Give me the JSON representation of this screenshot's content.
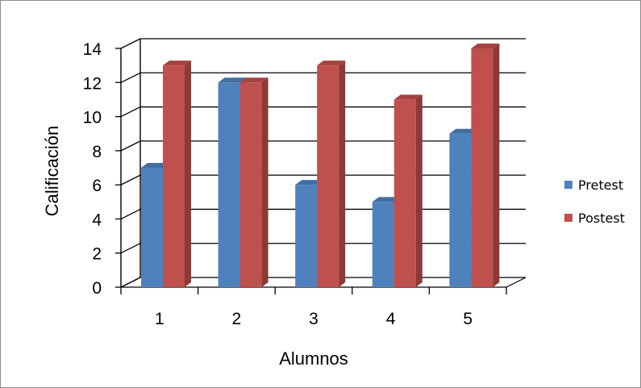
{
  "chart_data": {
    "type": "bar",
    "style": "3d-clustered-column",
    "categories": [
      "1",
      "2",
      "3",
      "4",
      "5"
    ],
    "series": [
      {
        "name": "Pretest",
        "values": [
          7,
          12,
          6,
          5,
          9
        ],
        "color": "#4f81bd"
      },
      {
        "name": "Postest",
        "values": [
          13,
          12,
          13,
          11,
          14
        ],
        "color": "#c0504d"
      }
    ],
    "xlabel": "Alumnos",
    "ylabel": "Calificación",
    "ylim": [
      0,
      14
    ],
    "yticks": [
      "0",
      "2",
      "4",
      "6",
      "8",
      "10",
      "12",
      "14"
    ],
    "grid": true,
    "legend_position": "right"
  }
}
